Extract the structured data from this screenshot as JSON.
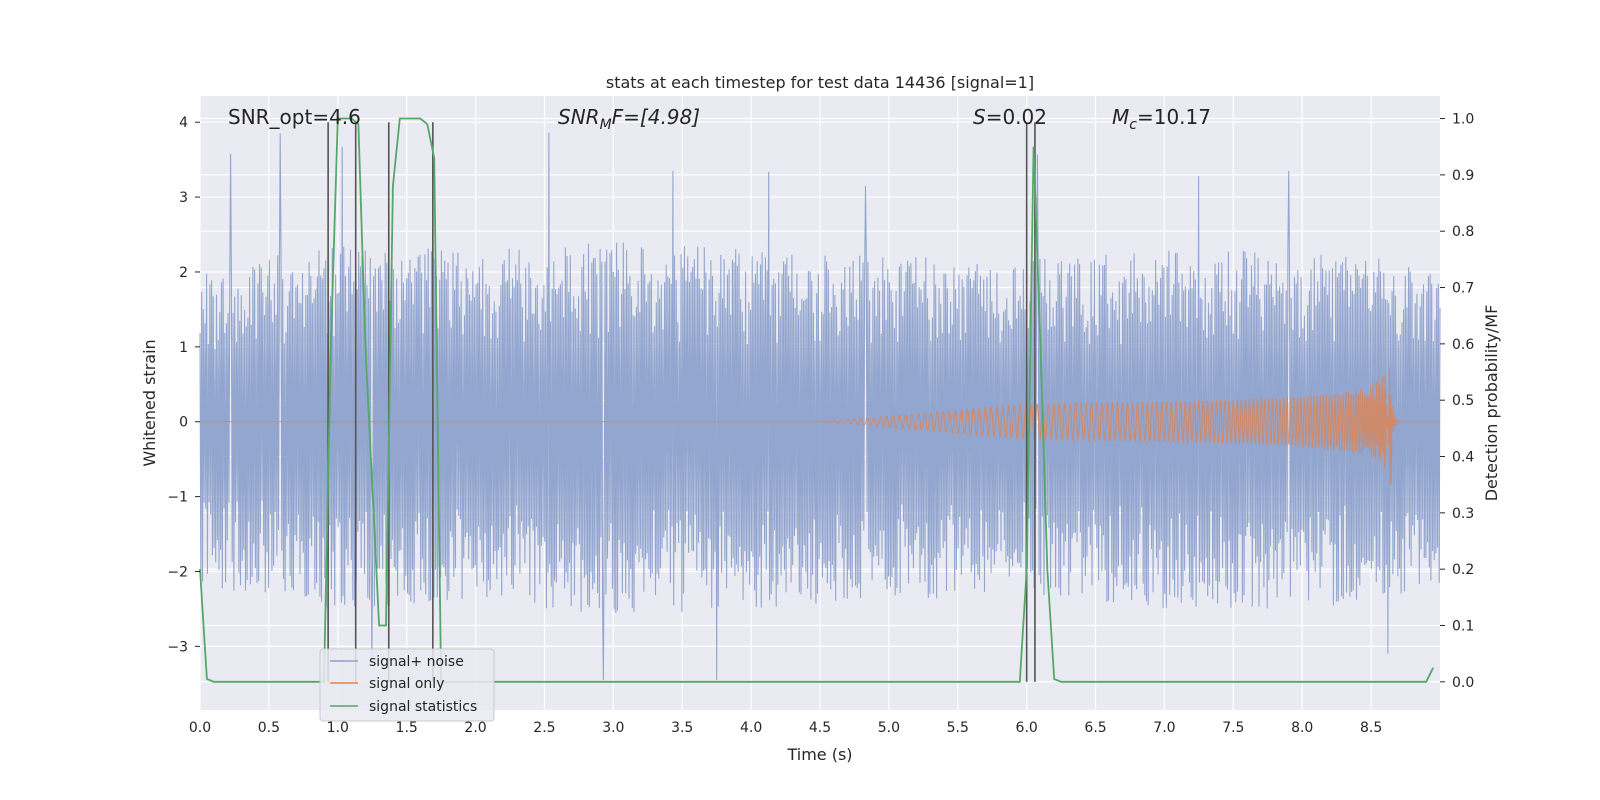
{
  "chart_data": {
    "type": "line",
    "title": "stats at each timestep for test data 14436 [signal=1]",
    "xlabel": "Time (s)",
    "ylabel_left": "Whitened strain",
    "ylabel_right": "Detection probability/MF",
    "xlim": [
      0.0,
      9.0
    ],
    "ylim_left": [
      -3.85,
      4.35
    ],
    "ylim_right": [
      -0.05,
      1.04
    ],
    "x_ticks": [
      "0.0",
      "0.5",
      "1.0",
      "1.5",
      "2.0",
      "2.5",
      "3.0",
      "3.5",
      "4.0",
      "4.5",
      "5.0",
      "5.5",
      "6.0",
      "6.5",
      "7.0",
      "7.5",
      "8.0",
      "8.5"
    ],
    "y_left_ticks": [
      "−3",
      "−2",
      "−1",
      "0",
      "1",
      "2",
      "3",
      "4"
    ],
    "y_right_ticks": [
      "0.0",
      "0.1",
      "0.2",
      "0.3",
      "0.4",
      "0.5",
      "0.6",
      "0.7",
      "0.8",
      "0.9",
      "1.0"
    ],
    "grid": true,
    "legend_position": "lower-left",
    "annotations": {
      "snr_opt": "SNR_opt=4.6",
      "snr_mf_main": "SNR",
      "snr_mf_sub": "M",
      "snr_mf_tail": "F=[4.98]",
      "s_main": "S",
      "s_tail": "=0.02",
      "mc_main": "M",
      "mc_sub": "c",
      "mc_tail": "=10.17"
    },
    "series": [
      {
        "name": "signal+ noise",
        "color": "#8ea2cc",
        "description_kind": "noise",
        "envelope_points": [
          [
            0.0,
            -2.2,
            2.0
          ],
          [
            1.0,
            -2.5,
            2.4
          ],
          [
            2.0,
            -2.4,
            2.3
          ],
          [
            3.0,
            -2.6,
            2.4
          ],
          [
            4.0,
            -2.5,
            2.3
          ],
          [
            5.0,
            -2.4,
            2.2
          ],
          [
            6.0,
            -2.3,
            2.2
          ],
          [
            7.0,
            -2.5,
            2.3
          ],
          [
            8.0,
            -2.5,
            2.3
          ],
          [
            9.0,
            -2.3,
            2.1
          ]
        ],
        "spikes": [
          [
            0.22,
            3.58
          ],
          [
            0.58,
            3.85
          ],
          [
            1.03,
            3.67
          ],
          [
            1.25,
            -3.2
          ],
          [
            2.53,
            3.86
          ],
          [
            2.93,
            -3.45
          ],
          [
            3.43,
            3.35
          ],
          [
            3.75,
            -3.45
          ],
          [
            4.13,
            3.34
          ],
          [
            4.83,
            3.15
          ],
          [
            6.08,
            3.57
          ],
          [
            7.25,
            3.28
          ],
          [
            7.9,
            3.35
          ],
          [
            8.62,
            -3.1
          ]
        ]
      },
      {
        "name": "signal only",
        "color": "#dd8452",
        "chirp": {
          "start": 4.5,
          "end": 8.65,
          "peak_amplitude": 0.88
        }
      },
      {
        "name": "signal statistics",
        "color": "#55a868",
        "axis": "right",
        "x": [
          0.0,
          0.05,
          0.1,
          0.15,
          0.9,
          0.95,
          1.0,
          1.05,
          1.1,
          1.15,
          1.2,
          1.3,
          1.35,
          1.4,
          1.45,
          1.5,
          1.55,
          1.6,
          1.65,
          1.7,
          1.75,
          5.95,
          6.0,
          6.05,
          6.1,
          6.15,
          6.2,
          6.25,
          8.9,
          8.95
        ],
        "values": [
          0.2,
          0.005,
          0.0,
          0.0,
          0.0,
          0.6,
          1.0,
          1.0,
          1.0,
          0.99,
          0.6,
          0.1,
          0.1,
          0.88,
          1.0,
          1.0,
          1.0,
          1.0,
          0.99,
          0.93,
          0.0,
          0.0,
          0.2,
          0.95,
          0.6,
          0.2,
          0.005,
          0.0,
          0.0,
          0.025
        ]
      }
    ],
    "vertical_markers": [
      0.93,
      1.13,
      1.37,
      1.69,
      6.0,
      6.06
    ]
  }
}
